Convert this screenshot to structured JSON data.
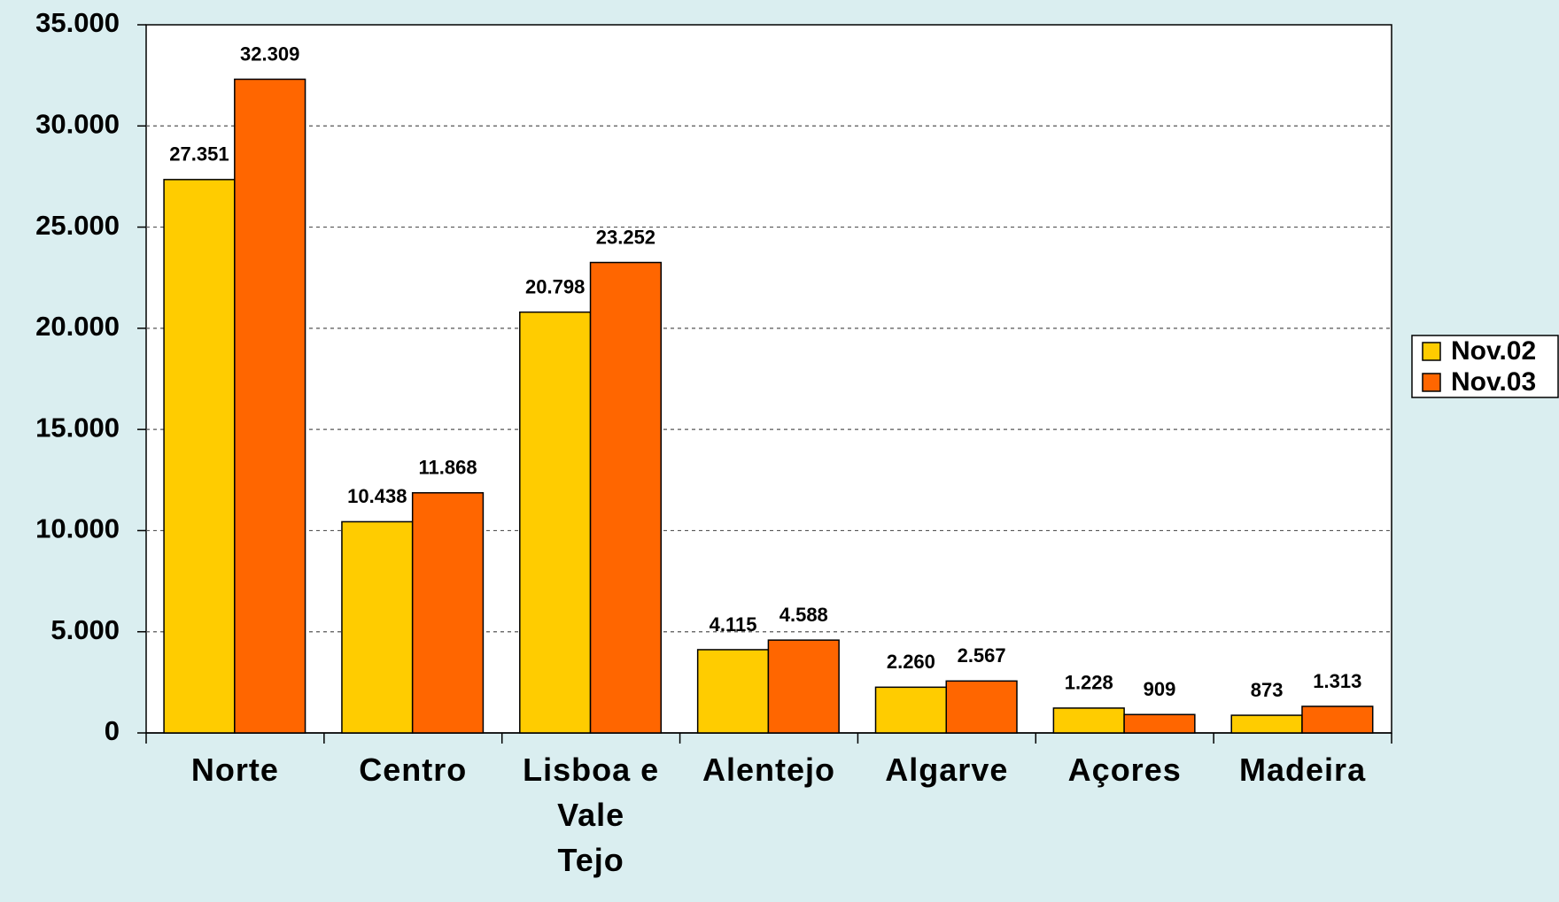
{
  "chart_data": {
    "type": "bar",
    "categories": [
      "Norte",
      "Centro",
      "Lisboa e Vale Tejo",
      "Alentejo",
      "Algarve",
      "Açores",
      "Madeira"
    ],
    "series": [
      {
        "name": "Nov.02",
        "color": "#FFCC00",
        "values": [
          27351,
          10438,
          20798,
          4115,
          2260,
          1228,
          873
        ],
        "value_labels": [
          "27.351",
          "10.438",
          "20.798",
          "4.115",
          "2.260",
          "1.228",
          "873"
        ]
      },
      {
        "name": "Nov.03",
        "color": "#FF6600",
        "values": [
          32309,
          11868,
          23252,
          4588,
          2567,
          909,
          1313
        ],
        "value_labels": [
          "32.309",
          "11.868",
          "23.252",
          "4.588",
          "2.567",
          "909",
          "1.313"
        ]
      }
    ],
    "ylim": [
      0,
      35000
    ],
    "yticks": [
      0,
      {
        "value": 5000,
        "label": "5.000"
      },
      {
        "value": 10000,
        "label": "10.000"
      },
      {
        "value": 15000,
        "label": "15.000"
      },
      {
        "value": 20000,
        "label": "20.000"
      },
      {
        "value": 25000,
        "label": "25.000"
      },
      {
        "value": 30000,
        "label": "30.000"
      },
      {
        "value": 35000,
        "label": "35.000"
      }
    ],
    "grid": true,
    "legend": "right"
  }
}
